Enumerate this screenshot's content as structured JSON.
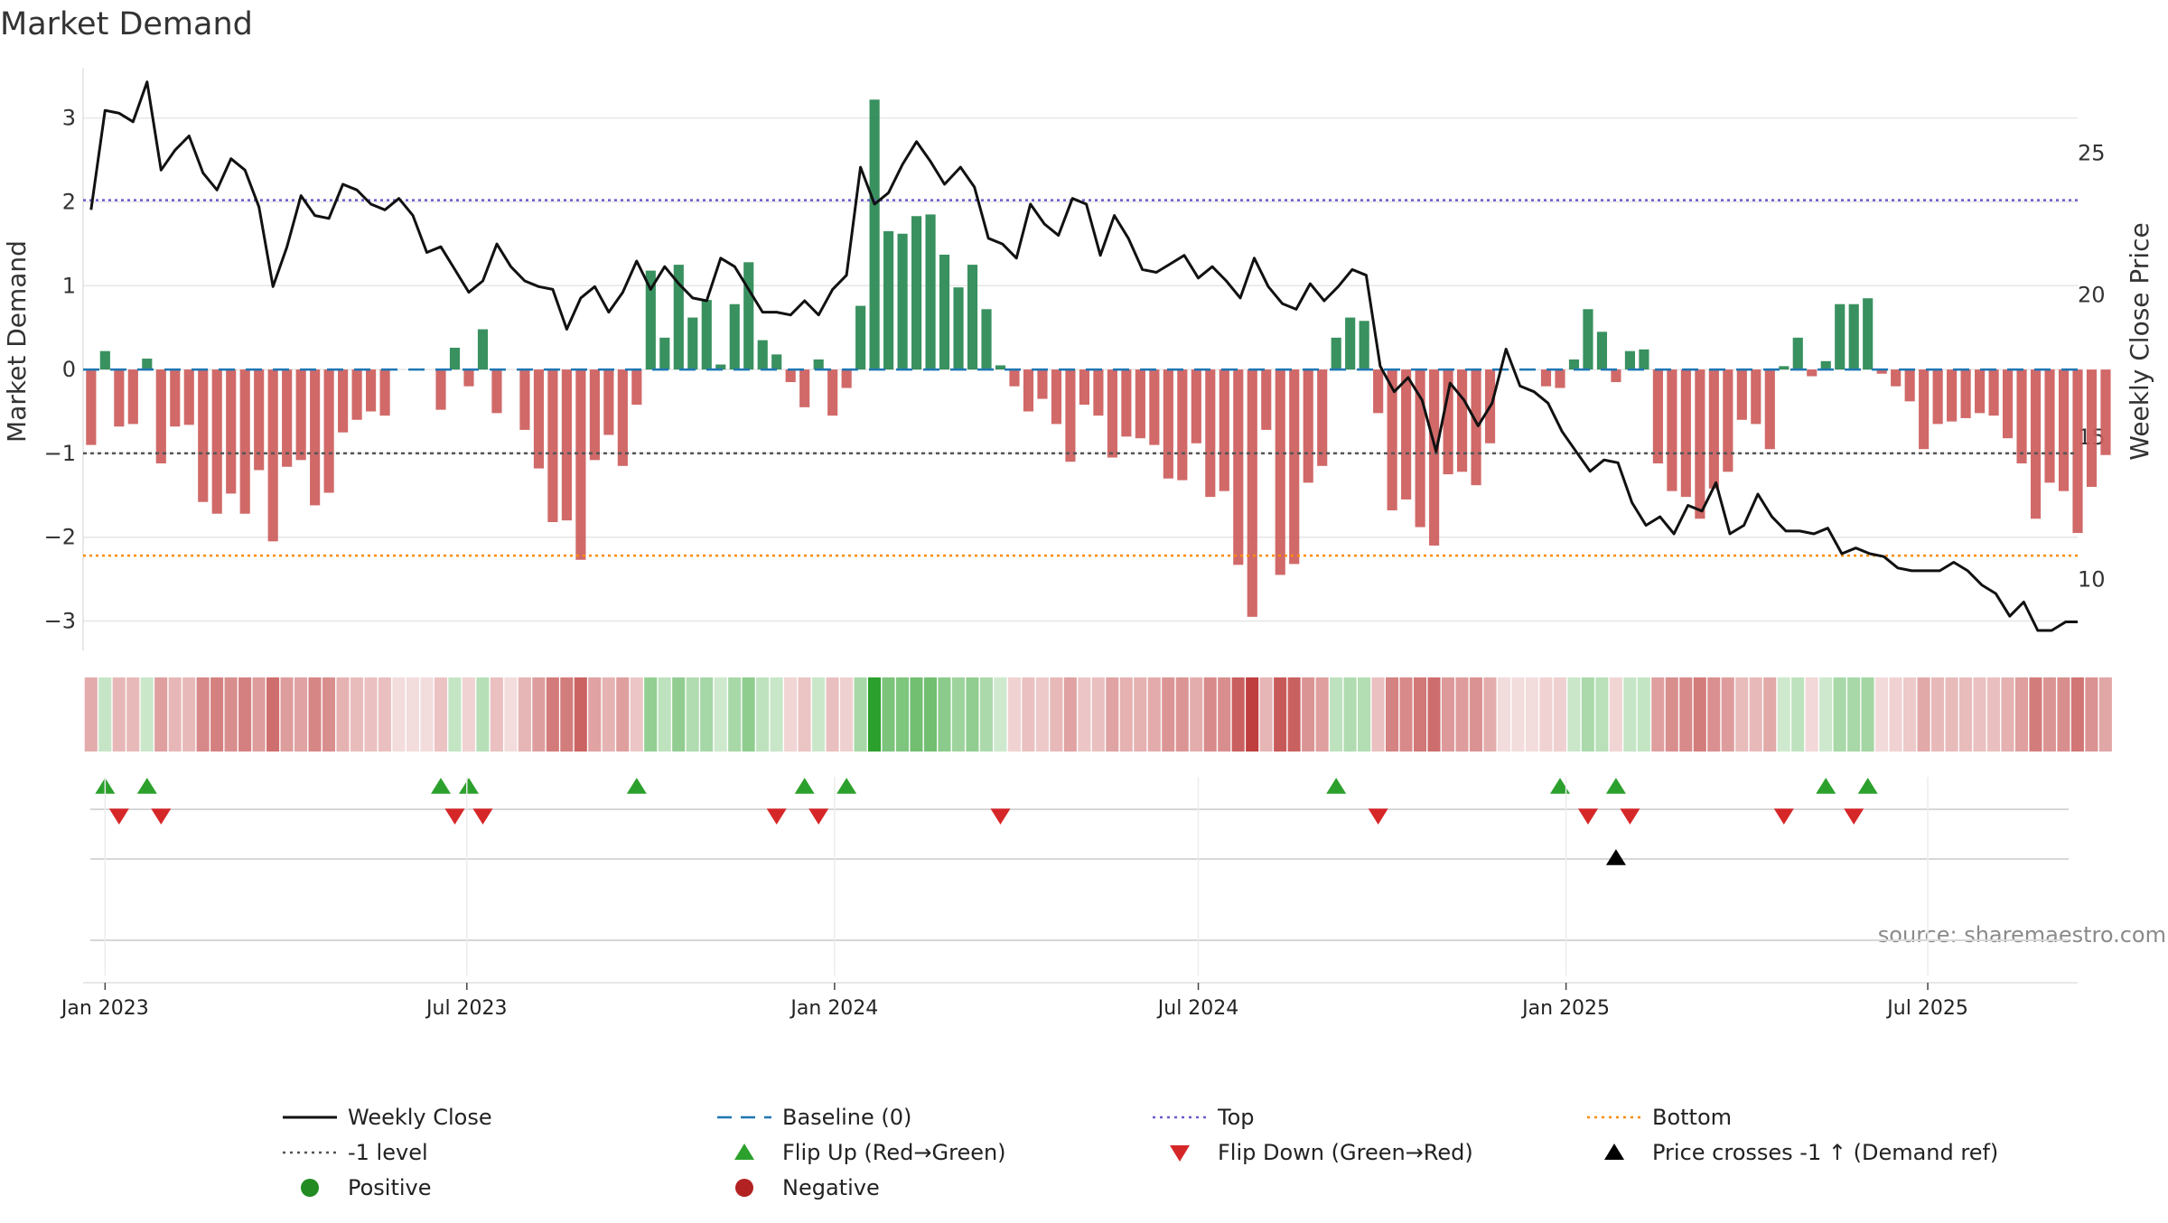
{
  "chart_data": {
    "type": "bar",
    "title": "Market Demand",
    "ylabel": "Market Demand",
    "y2label": "Weekly Close Price",
    "ylim": [
      -3.35,
      3.6
    ],
    "y_ticks": [
      3,
      2,
      1,
      0,
      -1,
      -2,
      -3
    ],
    "y_tick_labels": [
      "3",
      "2",
      "1",
      "0",
      "−1",
      "−2",
      "−3"
    ],
    "y2lim": [
      7.5,
      28
    ],
    "y2_ticks": [
      25,
      20,
      15,
      10
    ],
    "y2_tick_labels": [
      "25",
      "20",
      "15",
      "10"
    ],
    "x_range": [
      "2022-12-21",
      "2025-09-14"
    ],
    "x_ticks": [
      "2023-01-01",
      "2023-07-01",
      "2024-01-01",
      "2024-07-01",
      "2025-01-01",
      "2025-07-01"
    ],
    "x_tick_labels": [
      "Jan 2023",
      "Jul 2023",
      "Jan 2024",
      "Jul 2024",
      "Jan 2025",
      "Jul 2025"
    ],
    "first_week": "2022-12-25",
    "week_days": 7,
    "reference_lines": {
      "top": 2.02,
      "bottom": -2.22,
      "minus_one": -1,
      "baseline": 0
    },
    "demand": [
      -0.9,
      0.22,
      -0.68,
      -0.65,
      0.13,
      -1.12,
      -0.68,
      -0.66,
      -1.58,
      -1.72,
      -1.48,
      -1.72,
      -1.2,
      -2.05,
      -1.16,
      -1.08,
      -1.62,
      -1.47,
      -0.75,
      -0.6,
      -0.5,
      -0.55,
      0,
      0,
      0,
      -0.48,
      0.26,
      -0.2,
      0.48,
      -0.52,
      0,
      -0.72,
      -1.18,
      -1.82,
      -1.8,
      -2.27,
      -1.08,
      -0.78,
      -1.15,
      -0.42,
      1.18,
      0.38,
      1.25,
      0.62,
      0.83,
      0.06,
      0.78,
      1.28,
      0.35,
      0.18,
      -0.15,
      -0.45,
      0.12,
      -0.55,
      -0.22,
      0.76,
      3.22,
      1.65,
      1.62,
      1.83,
      1.85,
      1.37,
      0.98,
      1.25,
      0.72,
      0.05,
      -0.2,
      -0.5,
      -0.35,
      -0.65,
      -1.1,
      -0.42,
      -0.55,
      -1.05,
      -0.8,
      -0.82,
      -0.9,
      -1.3,
      -1.32,
      -0.88,
      -1.52,
      -1.45,
      -2.33,
      -2.95,
      -0.72,
      -2.45,
      -2.32,
      -1.35,
      -1.15,
      0.38,
      0.62,
      0.58,
      -0.52,
      -1.68,
      -1.55,
      -1.88,
      -2.1,
      -1.25,
      -1.22,
      -1.38,
      -0.88,
      0,
      0,
      0,
      -0.2,
      -0.22,
      0.12,
      0.72,
      0.45,
      -0.15,
      0.22,
      0.24,
      -1.12,
      -1.45,
      -1.52,
      -1.78,
      -1.42,
      -1.22,
      -0.6,
      -0.65,
      -0.95,
      0.04,
      0.38,
      -0.08,
      0.1,
      0.78,
      0.78,
      0.85,
      -0.05,
      -0.2,
      -0.38,
      -0.95,
      -0.65,
      -0.62,
      -0.58,
      -0.52,
      -0.55,
      -0.82,
      -1.12,
      -1.78,
      -1.35,
      -1.45,
      -1.95,
      -1.4,
      -1.02
    ],
    "close_series": {
      "name": "Weekly Close",
      "points": [
        [
          "2022-12-25",
          23
        ],
        [
          "2023-01-01",
          26.5
        ],
        [
          "2023-01-08",
          26.4
        ],
        [
          "2023-01-15",
          26.1
        ],
        [
          "2023-01-22",
          27.5
        ],
        [
          "2023-01-29",
          24.4
        ],
        [
          "2023-02-05",
          25.1
        ],
        [
          "2023-02-12",
          25.6
        ],
        [
          "2023-02-19",
          24.3
        ],
        [
          "2023-02-26",
          23.7
        ],
        [
          "2023-03-05",
          24.8
        ],
        [
          "2023-03-12",
          24.4
        ],
        [
          "2023-03-19",
          23.1
        ],
        [
          "2023-03-26",
          20.3
        ],
        [
          "2023-04-02",
          21.7
        ],
        [
          "2023-04-09",
          23.5
        ],
        [
          "2023-04-16",
          22.8
        ],
        [
          "2023-04-23",
          22.7
        ],
        [
          "2023-04-30",
          23.9
        ],
        [
          "2023-05-07",
          23.7
        ],
        [
          "2023-05-14",
          23.2
        ],
        [
          "2023-05-21",
          23.0
        ],
        [
          "2023-05-28",
          23.4
        ],
        [
          "2023-06-04",
          22.8
        ],
        [
          "2023-06-11",
          21.5
        ],
        [
          "2023-06-18",
          21.7
        ],
        [
          "2023-06-25",
          20.9
        ],
        [
          "2023-07-02",
          20.1
        ],
        [
          "2023-07-09",
          20.5
        ],
        [
          "2023-07-16",
          21.8
        ],
        [
          "2023-07-23",
          21.0
        ],
        [
          "2023-07-30",
          20.5
        ],
        [
          "2023-08-06",
          20.3
        ],
        [
          "2023-08-13",
          20.2
        ],
        [
          "2023-08-20",
          18.8
        ],
        [
          "2023-08-27",
          19.9
        ],
        [
          "2023-09-03",
          20.3
        ],
        [
          "2023-09-10",
          19.4
        ],
        [
          "2023-09-17",
          20.1
        ],
        [
          "2023-09-24",
          21.2
        ],
        [
          "2023-10-01",
          20.2
        ],
        [
          "2023-10-08",
          21.0
        ],
        [
          "2023-10-15",
          20.4
        ],
        [
          "2023-10-22",
          19.9
        ],
        [
          "2023-10-29",
          19.8
        ],
        [
          "2023-11-05",
          21.3
        ],
        [
          "2023-11-12",
          21.0
        ],
        [
          "2023-11-19",
          20.2
        ],
        [
          "2023-11-26",
          19.4
        ],
        [
          "2023-12-03",
          19.4
        ],
        [
          "2023-12-10",
          19.3
        ],
        [
          "2023-12-17",
          19.8
        ],
        [
          "2023-12-24",
          19.3
        ],
        [
          "2023-12-31",
          20.2
        ],
        [
          "2024-01-07",
          20.7
        ],
        [
          "2024-01-14",
          24.5
        ],
        [
          "2024-01-21",
          23.2
        ],
        [
          "2024-01-28",
          23.6
        ],
        [
          "2024-02-04",
          24.6
        ],
        [
          "2024-02-11",
          25.4
        ],
        [
          "2024-02-18",
          24.7
        ],
        [
          "2024-02-25",
          23.9
        ],
        [
          "2024-03-04",
          24.5
        ],
        [
          "2024-03-11",
          23.8
        ],
        [
          "2024-03-18",
          22.0
        ],
        [
          "2024-03-25",
          21.8
        ],
        [
          "2024-04-01",
          21.3
        ],
        [
          "2024-04-08",
          23.2
        ],
        [
          "2024-04-15",
          22.5
        ],
        [
          "2024-04-22",
          22.1
        ],
        [
          "2024-04-29",
          23.4
        ],
        [
          "2024-05-06",
          23.2
        ],
        [
          "2024-05-13",
          21.4
        ],
        [
          "2024-05-20",
          22.8
        ],
        [
          "2024-05-27",
          22.0
        ],
        [
          "2024-06-03",
          20.9
        ],
        [
          "2024-06-10",
          20.8
        ],
        [
          "2024-06-17",
          21.1
        ],
        [
          "2024-06-24",
          21.4
        ],
        [
          "2024-07-01",
          20.6
        ],
        [
          "2024-07-08",
          21.0
        ],
        [
          "2024-07-15",
          20.5
        ],
        [
          "2024-07-22",
          19.9
        ],
        [
          "2024-07-29",
          21.3
        ],
        [
          "2024-08-05",
          20.3
        ],
        [
          "2024-08-12",
          19.7
        ],
        [
          "2024-08-19",
          19.5
        ],
        [
          "2024-08-26",
          20.4
        ],
        [
          "2024-09-02",
          19.8
        ],
        [
          "2024-09-09",
          20.3
        ],
        [
          "2024-09-16",
          20.9
        ],
        [
          "2024-09-23",
          20.7
        ],
        [
          "2024-09-30",
          17.5
        ],
        [
          "2024-10-07",
          16.6
        ],
        [
          "2024-10-14",
          17.1
        ],
        [
          "2024-10-21",
          16.3
        ],
        [
          "2024-10-28",
          14.5
        ],
        [
          "2024-11-04",
          16.9
        ],
        [
          "2024-11-11",
          16.3
        ],
        [
          "2024-11-18",
          15.4
        ],
        [
          "2024-11-25",
          16.2
        ],
        [
          "2024-12-02",
          18.1
        ],
        [
          "2024-12-09",
          16.8
        ],
        [
          "2024-12-16",
          16.6
        ],
        [
          "2024-12-23",
          16.2
        ],
        [
          "2024-12-30",
          15.2
        ],
        [
          "2025-01-06",
          14.5
        ],
        [
          "2025-01-13",
          13.8
        ],
        [
          "2025-01-20",
          14.2
        ],
        [
          "2025-01-27",
          14.1
        ],
        [
          "2025-02-03",
          12.7
        ],
        [
          "2025-02-10",
          11.9
        ],
        [
          "2025-02-17",
          12.2
        ],
        [
          "2025-02-24",
          11.6
        ],
        [
          "2025-03-03",
          12.6
        ],
        [
          "2025-03-10",
          12.4
        ],
        [
          "2025-03-17",
          13.4
        ],
        [
          "2025-03-24",
          11.6
        ],
        [
          "2025-03-31",
          11.9
        ],
        [
          "2025-04-07",
          13.0
        ],
        [
          "2025-04-14",
          12.2
        ],
        [
          "2025-04-21",
          11.7
        ],
        [
          "2025-04-28",
          11.7
        ],
        [
          "2025-05-05",
          11.6
        ],
        [
          "2025-05-12",
          11.8
        ],
        [
          "2025-05-19",
          10.9
        ],
        [
          "2025-05-26",
          11.1
        ],
        [
          "2025-06-02",
          10.9
        ],
        [
          "2025-06-09",
          10.8
        ],
        [
          "2025-06-16",
          10.4
        ],
        [
          "2025-06-23",
          10.3
        ],
        [
          "2025-06-30",
          10.3
        ],
        [
          "2025-07-07",
          10.3
        ],
        [
          "2025-07-14",
          10.6
        ],
        [
          "2025-07-21",
          10.3
        ],
        [
          "2025-07-28",
          9.8
        ],
        [
          "2025-08-04",
          9.5
        ],
        [
          "2025-08-11",
          8.7
        ],
        [
          "2025-08-18",
          9.2
        ],
        [
          "2025-08-25",
          8.2
        ],
        [
          "2025-09-01",
          8.2
        ],
        [
          "2025-09-08",
          8.5
        ],
        [
          "2025-09-14",
          8.5
        ]
      ]
    },
    "flip_up_weeks": [
      1,
      4,
      25,
      27,
      39,
      51,
      54,
      89,
      105,
      109,
      124,
      127
    ],
    "flip_down_weeks": [
      2,
      5,
      26,
      28,
      49,
      52,
      65,
      92,
      107,
      110,
      121,
      126
    ],
    "price_cross_weeks": [
      109
    ],
    "colors": {
      "positive": "#2e8b57",
      "negative": "#cd5c5c",
      "close": "#111111",
      "baseline": "#1f77b4",
      "top": "#6a5acd",
      "bottom": "#ff8c00",
      "minus_one": "#555555",
      "flip_up": "#2ca02c",
      "flip_down": "#d62728",
      "cross": "#000000",
      "grid": "#e6e6e6",
      "positive_dot": "#228b22",
      "negative_dot": "#b22222"
    },
    "source_text": "source: sharemaestro.com",
    "legend": [
      {
        "label": "Weekly Close",
        "marker": "solid-line",
        "color": "#111111"
      },
      {
        "label": "Baseline (0)",
        "marker": "dash-line",
        "color": "#1f77b4"
      },
      {
        "label": "Top",
        "marker": "dot-line",
        "color": "#6a5acd"
      },
      {
        "label": "Bottom",
        "marker": "dot-line",
        "color": "#ff8c00"
      },
      {
        "label": "-1 level",
        "marker": "dot-line",
        "color": "#555555"
      },
      {
        "label": "Flip Up (Red→Green)",
        "marker": "triangle-up",
        "color": "#2ca02c"
      },
      {
        "label": "Flip Down (Green→Red)",
        "marker": "triangle-down",
        "color": "#d62728"
      },
      {
        "label": "Price crosses -1 ↑ (Demand ref)",
        "marker": "triangle-up",
        "color": "#000000"
      },
      {
        "label": "Positive",
        "marker": "circle",
        "color": "#228b22"
      },
      {
        "label": "Negative",
        "marker": "circle",
        "color": "#b22222"
      }
    ]
  }
}
